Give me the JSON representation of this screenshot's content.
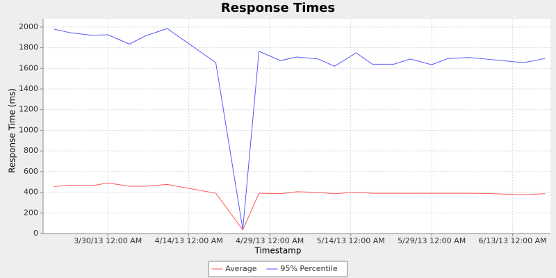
{
  "chart_data": {
    "type": "line",
    "title": "Response Times",
    "x_label": "Timestamp",
    "y_label": "Response Time (ms)",
    "x": [
      "2013-03-20",
      "2013-03-23",
      "2013-03-27",
      "2013-03-30",
      "2013-04-03",
      "2013-04-06",
      "2013-04-10",
      "2013-04-19",
      "2013-04-24",
      "2013-04-27",
      "2013-05-01",
      "2013-05-04",
      "2013-05-08",
      "2013-05-11",
      "2013-05-15",
      "2013-05-18",
      "2013-05-22",
      "2013-05-25",
      "2013-05-29",
      "2013-06-01",
      "2013-06-05",
      "2013-06-08",
      "2013-06-15",
      "2013-06-19"
    ],
    "series": [
      {
        "name": "Average",
        "color": "#ff5555",
        "values": [
          455,
          468,
          463,
          490,
          458,
          458,
          475,
          390,
          35,
          390,
          385,
          405,
          398,
          385,
          400,
          390,
          390,
          390,
          390,
          390,
          390,
          388,
          375,
          385
        ]
      },
      {
        "name": "95% Percentile",
        "color": "#5555ff",
        "values": [
          1980,
          1945,
          1920,
          1925,
          1835,
          1915,
          1985,
          1655,
          40,
          1765,
          1675,
          1710,
          1690,
          1620,
          1750,
          1640,
          1640,
          1690,
          1635,
          1695,
          1705,
          1690,
          1655,
          1695
        ]
      }
    ],
    "xlim": [
      "2013-03-18",
      "2013-06-20"
    ],
    "xticks": [
      {
        "value": "2013-03-30",
        "label": "3/30/13 12:00 AM"
      },
      {
        "value": "2013-04-14",
        "label": "4/14/13 12:00 AM"
      },
      {
        "value": "2013-04-29",
        "label": "4/29/13 12:00 AM"
      },
      {
        "value": "2013-05-14",
        "label": "5/14/13 12:00 AM"
      },
      {
        "value": "2013-05-29",
        "label": "5/29/13 12:00 AM"
      },
      {
        "value": "2013-06-13",
        "label": "6/13/13 12:00 AM"
      }
    ],
    "ylim": [
      0,
      2080
    ],
    "yticks": [
      0,
      200,
      400,
      600,
      800,
      1000,
      1200,
      1400,
      1600,
      1800,
      2000
    ],
    "grid": true,
    "legend": "bottom"
  }
}
